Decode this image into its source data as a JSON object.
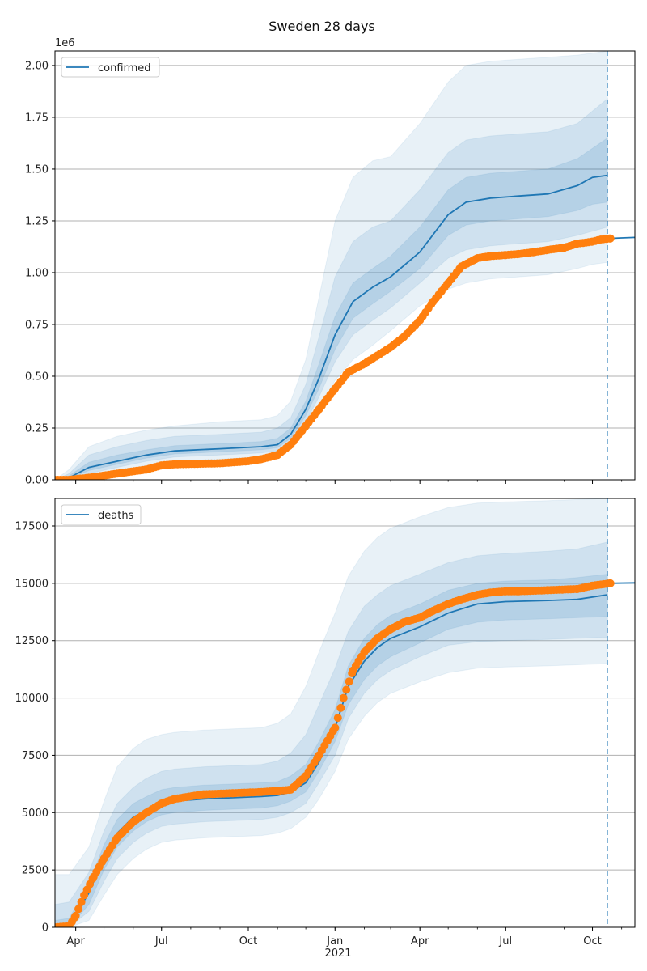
{
  "figure": {
    "title": "Sweden 28 days",
    "xaxis_year_label": "2021"
  },
  "colors": {
    "model": "#1f77b4",
    "observed": "#ff7f0e",
    "band": "#1f77b4",
    "grid": "#b0b0b0"
  },
  "chart_data": [
    {
      "type": "line",
      "name": "confirmed",
      "legend": [
        "confirmed"
      ],
      "legend_position": "top-left",
      "y_multiplier_label": "1e6",
      "x_tick_labels": [
        "Apr",
        "Jul",
        "Oct",
        "Jan",
        "Apr",
        "Jul",
        "Oct"
      ],
      "x_tick_dates": [
        "2020-04-01",
        "2020-07-01",
        "2020-10-01",
        "2021-01-01",
        "2021-04-01",
        "2021-07-01",
        "2021-10-01"
      ],
      "xlim": [
        "2020-03-10",
        "2021-11-15"
      ],
      "forecast_date": "2021-10-17",
      "ylim": [
        0,
        2.07
      ],
      "y_ticks": [
        "0.00",
        "0.25",
        "0.50",
        "0.75",
        "1.00",
        "1.25",
        "1.50",
        "1.75",
        "2.00"
      ],
      "grid": "horizontal",
      "model_median": {
        "x": [
          "2020-03-10",
          "2020-03-25",
          "2020-04-15",
          "2020-05-15",
          "2020-06-15",
          "2020-07-15",
          "2020-09-01",
          "2020-10-15",
          "2020-11-01",
          "2020-11-15",
          "2020-12-01",
          "2020-12-15",
          "2021-01-01",
          "2021-01-20",
          "2021-02-10",
          "2021-03-01",
          "2021-04-01",
          "2021-05-01",
          "2021-05-20",
          "2021-06-15",
          "2021-07-15",
          "2021-08-15",
          "2021-09-15",
          "2021-10-01",
          "2021-10-17",
          "2021-11-15"
        ],
        "y": [
          0,
          0.01,
          0.06,
          0.09,
          0.12,
          0.14,
          0.15,
          0.16,
          0.17,
          0.22,
          0.34,
          0.49,
          0.7,
          0.86,
          0.93,
          0.98,
          1.1,
          1.28,
          1.34,
          1.36,
          1.37,
          1.38,
          1.42,
          1.46,
          1.47,
          1.17
        ]
      },
      "post_forecast_line": {
        "x": [
          "2021-10-17",
          "2021-11-15"
        ],
        "y": [
          1.165,
          1.17
        ]
      },
      "bands": {
        "x": [
          "2020-03-10",
          "2020-03-25",
          "2020-04-15",
          "2020-05-15",
          "2020-06-15",
          "2020-07-15",
          "2020-09-01",
          "2020-10-15",
          "2020-11-01",
          "2020-11-15",
          "2020-12-01",
          "2020-12-15",
          "2021-01-01",
          "2021-01-20",
          "2021-02-10",
          "2021-03-01",
          "2021-04-01",
          "2021-05-01",
          "2021-05-20",
          "2021-06-15",
          "2021-07-15",
          "2021-08-15",
          "2021-09-15",
          "2021-10-01",
          "2021-10-17"
        ],
        "outer_lo": [
          0,
          0,
          0.01,
          0.04,
          0.07,
          0.09,
          0.1,
          0.11,
          0.12,
          0.15,
          0.24,
          0.34,
          0.48,
          0.58,
          0.65,
          0.72,
          0.84,
          0.92,
          0.95,
          0.97,
          0.98,
          0.99,
          1.02,
          1.04,
          1.05
        ],
        "outer_hi": [
          0,
          0.05,
          0.16,
          0.21,
          0.24,
          0.26,
          0.28,
          0.29,
          0.31,
          0.38,
          0.58,
          0.88,
          1.25,
          1.46,
          1.54,
          1.56,
          1.72,
          1.92,
          2.0,
          2.02,
          2.03,
          2.04,
          2.05,
          2.06,
          2.07
        ],
        "mid_lo": [
          0,
          0,
          0.03,
          0.06,
          0.09,
          0.11,
          0.12,
          0.13,
          0.14,
          0.18,
          0.28,
          0.4,
          0.57,
          0.7,
          0.77,
          0.83,
          0.95,
          1.07,
          1.11,
          1.13,
          1.14,
          1.15,
          1.18,
          1.2,
          1.22
        ],
        "mid_hi": [
          0,
          0.03,
          0.12,
          0.16,
          0.19,
          0.21,
          0.22,
          0.23,
          0.25,
          0.3,
          0.46,
          0.69,
          0.98,
          1.15,
          1.22,
          1.25,
          1.4,
          1.58,
          1.64,
          1.66,
          1.67,
          1.68,
          1.72,
          1.78,
          1.84
        ],
        "inner_lo": [
          0,
          0.005,
          0.045,
          0.075,
          0.105,
          0.125,
          0.135,
          0.145,
          0.155,
          0.2,
          0.31,
          0.44,
          0.63,
          0.78,
          0.85,
          0.91,
          1.02,
          1.18,
          1.23,
          1.25,
          1.26,
          1.27,
          1.3,
          1.33,
          1.34
        ],
        "inner_hi": [
          0,
          0.02,
          0.085,
          0.12,
          0.145,
          0.165,
          0.175,
          0.185,
          0.2,
          0.25,
          0.38,
          0.56,
          0.79,
          0.95,
          1.02,
          1.08,
          1.22,
          1.4,
          1.46,
          1.48,
          1.49,
          1.5,
          1.55,
          1.6,
          1.65
        ]
      },
      "observed": {
        "x": [
          "2020-03-10",
          "2020-03-25",
          "2020-04-15",
          "2020-05-15",
          "2020-06-15",
          "2020-07-01",
          "2020-07-15",
          "2020-09-01",
          "2020-10-01",
          "2020-10-15",
          "2020-11-01",
          "2020-11-15",
          "2020-12-01",
          "2020-12-15",
          "2021-01-01",
          "2021-01-15",
          "2021-02-01",
          "2021-02-15",
          "2021-03-01",
          "2021-03-15",
          "2021-04-01",
          "2021-04-15",
          "2021-05-01",
          "2021-05-15",
          "2021-06-01",
          "2021-06-15",
          "2021-07-01",
          "2021-07-15",
          "2021-08-01",
          "2021-08-15",
          "2021-09-01",
          "2021-09-15",
          "2021-10-01",
          "2021-10-10",
          "2021-10-20"
        ],
        "y": [
          0,
          0,
          0.01,
          0.03,
          0.05,
          0.07,
          0.075,
          0.08,
          0.09,
          0.1,
          0.12,
          0.17,
          0.26,
          0.34,
          0.44,
          0.52,
          0.56,
          0.6,
          0.64,
          0.69,
          0.77,
          0.86,
          0.95,
          1.03,
          1.07,
          1.08,
          1.085,
          1.09,
          1.1,
          1.11,
          1.12,
          1.14,
          1.15,
          1.16,
          1.165
        ]
      }
    },
    {
      "type": "line",
      "name": "deaths",
      "legend": [
        "deaths"
      ],
      "legend_position": "top-left",
      "x_tick_labels": [
        "Apr",
        "Jul",
        "Oct",
        "Jan",
        "Apr",
        "Jul",
        "Oct"
      ],
      "x_tick_dates": [
        "2020-04-01",
        "2020-07-01",
        "2020-10-01",
        "2021-01-01",
        "2021-04-01",
        "2021-07-01",
        "2021-10-01"
      ],
      "xlim": [
        "2020-03-10",
        "2021-11-15"
      ],
      "forecast_date": "2021-10-17",
      "ylim": [
        0,
        18700
      ],
      "y_ticks": [
        "0",
        "2500",
        "5000",
        "7500",
        "10000",
        "12500",
        "15000",
        "17500"
      ],
      "grid": "horizontal",
      "model_median": {
        "x": [
          "2020-03-10",
          "2020-03-25",
          "2020-04-15",
          "2020-05-01",
          "2020-05-15",
          "2020-06-01",
          "2020-06-15",
          "2020-07-01",
          "2020-07-15",
          "2020-08-15",
          "2020-09-15",
          "2020-10-15",
          "2020-11-01",
          "2020-11-15",
          "2020-12-01",
          "2020-12-15",
          "2021-01-01",
          "2021-01-15",
          "2021-02-01",
          "2021-02-15",
          "2021-03-01",
          "2021-04-01",
          "2021-05-01",
          "2021-06-01",
          "2021-07-01",
          "2021-08-15",
          "2021-09-15",
          "2021-10-17",
          "2021-11-15"
        ],
        "y": [
          0,
          100,
          1500,
          3100,
          4100,
          4800,
          5100,
          5400,
          5500,
          5600,
          5650,
          5700,
          5750,
          5900,
          6300,
          7200,
          8700,
          10500,
          11600,
          12200,
          12600,
          13100,
          13700,
          14100,
          14200,
          14250,
          14300,
          14500,
          15020
        ]
      },
      "post_forecast_line": {
        "x": [
          "2021-10-17",
          "2021-11-15"
        ],
        "y": [
          15000,
          15020
        ]
      },
      "bands": {
        "x": [
          "2020-03-10",
          "2020-03-25",
          "2020-04-15",
          "2020-05-01",
          "2020-05-15",
          "2020-06-01",
          "2020-06-15",
          "2020-07-01",
          "2020-07-15",
          "2020-08-15",
          "2020-09-15",
          "2020-10-15",
          "2020-11-01",
          "2020-11-15",
          "2020-12-01",
          "2020-12-15",
          "2021-01-01",
          "2021-01-15",
          "2021-02-01",
          "2021-02-15",
          "2021-03-01",
          "2021-04-01",
          "2021-05-01",
          "2021-06-01",
          "2021-07-01",
          "2021-08-15",
          "2021-09-15",
          "2021-10-17"
        ],
        "outer_lo": [
          0,
          0,
          300,
          1400,
          2300,
          3000,
          3400,
          3700,
          3800,
          3900,
          3950,
          4000,
          4100,
          4300,
          4800,
          5600,
          6800,
          8200,
          9200,
          9800,
          10200,
          10700,
          11100,
          11300,
          11350,
          11400,
          11450,
          11500
        ],
        "outer_hi": [
          2300,
          2300,
          3500,
          5500,
          7000,
          7800,
          8200,
          8400,
          8500,
          8600,
          8650,
          8700,
          8900,
          9300,
          10500,
          12000,
          13700,
          15300,
          16400,
          17000,
          17400,
          17900,
          18300,
          18500,
          18550,
          18600,
          18650,
          18700
        ],
        "mid_lo": [
          0,
          0,
          700,
          2000,
          3000,
          3700,
          4100,
          4400,
          4500,
          4600,
          4650,
          4700,
          4800,
          5000,
          5400,
          6300,
          7500,
          9100,
          10200,
          10800,
          11200,
          11800,
          12300,
          12450,
          12500,
          12550,
          12600,
          12650
        ],
        "mid_hi": [
          1000,
          1100,
          2400,
          4200,
          5400,
          6100,
          6500,
          6800,
          6900,
          7000,
          7050,
          7100,
          7250,
          7600,
          8400,
          9700,
          11300,
          12900,
          14000,
          14500,
          14900,
          15400,
          15900,
          16200,
          16300,
          16400,
          16500,
          16800
        ],
        "inner_lo": [
          0,
          0,
          1000,
          2500,
          3500,
          4200,
          4600,
          4900,
          5000,
          5100,
          5150,
          5200,
          5300,
          5500,
          5900,
          6800,
          8100,
          9700,
          10800,
          11400,
          11800,
          12400,
          13000,
          13300,
          13400,
          13450,
          13500,
          13550
        ],
        "inner_hi": [
          300,
          400,
          1900,
          3600,
          4700,
          5400,
          5700,
          6000,
          6100,
          6200,
          6250,
          6300,
          6350,
          6600,
          7100,
          8100,
          9500,
          11400,
          12600,
          13200,
          13600,
          14100,
          14700,
          15000,
          15100,
          15150,
          15250,
          15400
        ]
      },
      "observed": {
        "x": [
          "2020-03-10",
          "2020-03-25",
          "2020-04-01",
          "2020-04-10",
          "2020-04-20",
          "2020-05-01",
          "2020-05-15",
          "2020-06-01",
          "2020-06-15",
          "2020-07-01",
          "2020-07-15",
          "2020-08-15",
          "2020-09-15",
          "2020-10-15",
          "2020-11-01",
          "2020-11-15",
          "2020-12-01",
          "2020-12-15",
          "2021-01-01",
          "2021-01-10",
          "2021-01-20",
          "2021-02-01",
          "2021-02-15",
          "2021-03-01",
          "2021-03-15",
          "2021-04-01",
          "2021-04-15",
          "2021-05-01",
          "2021-05-15",
          "2021-06-01",
          "2021-06-15",
          "2021-07-01",
          "2021-07-15",
          "2021-08-15",
          "2021-09-15",
          "2021-10-01",
          "2021-10-20"
        ],
        "y": [
          0,
          50,
          500,
          1400,
          2200,
          3000,
          3900,
          4600,
          5000,
          5400,
          5600,
          5800,
          5850,
          5900,
          5950,
          6000,
          6600,
          7500,
          8700,
          10000,
          11200,
          12000,
          12600,
          13000,
          13300,
          13500,
          13800,
          14100,
          14300,
          14500,
          14600,
          14650,
          14650,
          14700,
          14750,
          14900,
          15000
        ]
      }
    }
  ]
}
